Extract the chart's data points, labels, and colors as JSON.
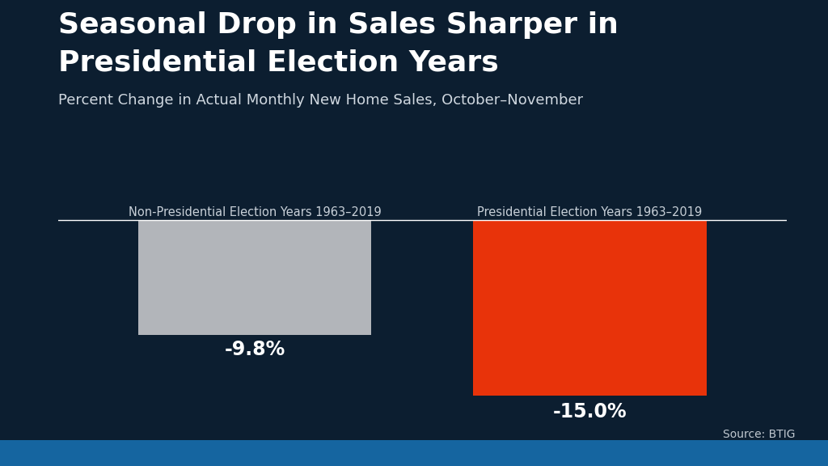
{
  "title_line1": "Seasonal Drop in Sales Sharper in",
  "title_line2": "Presidential Election Years",
  "subtitle": "Percent Change in Actual Monthly New Home Sales, October–November",
  "categories": [
    "Non-Presidential Election Years 1963–2019",
    "Presidential Election Years 1963–2019"
  ],
  "values": [
    -9.8,
    -15.0
  ],
  "bar_colors": [
    "#b2b5ba",
    "#e8330a"
  ],
  "value_labels": [
    "-9.8%",
    "-15.0%"
  ],
  "source": "Source: BTIG",
  "background_color": "#0c1e30",
  "title_color": "#ffffff",
  "subtitle_color": "#d0d8e0",
  "label_color": "#c8d0d8",
  "value_color": "#ffffff",
  "source_color": "#c0c8d0",
  "ylim": [
    -17,
    0.5
  ],
  "title_fontsize": 26,
  "subtitle_fontsize": 13,
  "label_fontsize": 10.5,
  "value_fontsize": 17,
  "source_fontsize": 10,
  "bottom_bar_color": "#1565a0"
}
